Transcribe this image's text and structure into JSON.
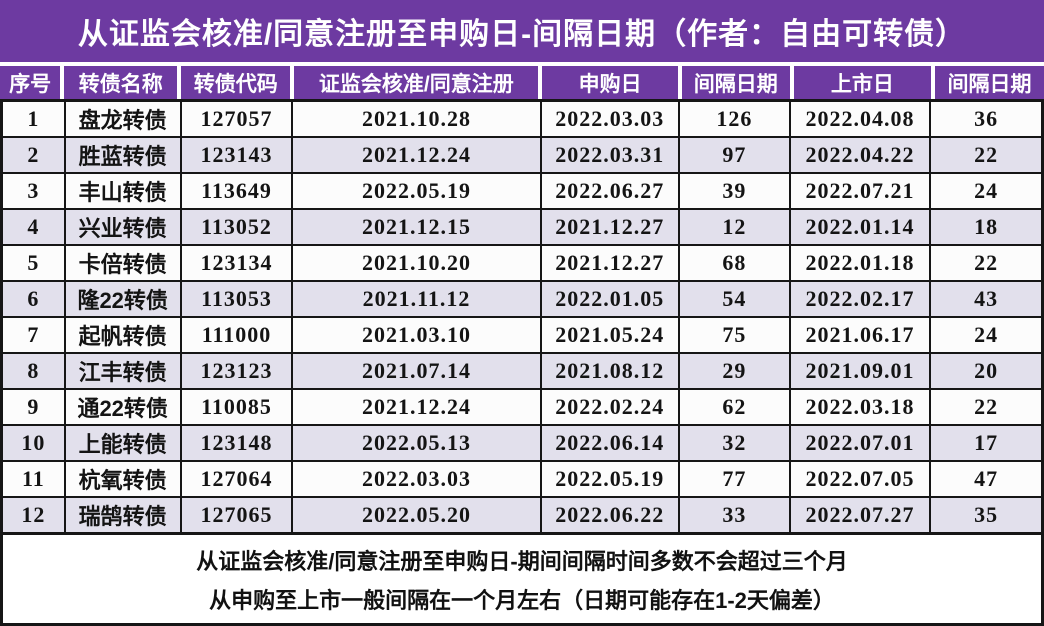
{
  "colors": {
    "accent_purple": "#6d3aa1",
    "row_alt_lavender": "#e2e0ec",
    "row_white": "#fcfcfc",
    "grid_black": "#161616",
    "header_text": "#ffffff"
  },
  "chart_data": {
    "type": "table",
    "title": "从证监会核准/同意注册至申购日-间隔日期（作者：自由可转债）",
    "columns": [
      "序号",
      "转债名称",
      "转债代码",
      "证监会核准/同意注册",
      "申购日",
      "间隔日期",
      "上市日",
      "间隔日期"
    ],
    "rows": [
      [
        "1",
        "盘龙转债",
        "127057",
        "2021.10.28",
        "2022.03.03",
        "126",
        "2022.04.08",
        "36"
      ],
      [
        "2",
        "胜蓝转债",
        "123143",
        "2021.12.24",
        "2022.03.31",
        "97",
        "2022.04.22",
        "22"
      ],
      [
        "3",
        "丰山转债",
        "113649",
        "2022.05.19",
        "2022.06.27",
        "39",
        "2022.07.21",
        "24"
      ],
      [
        "4",
        "兴业转债",
        "113052",
        "2021.12.15",
        "2021.12.27",
        "12",
        "2022.01.14",
        "18"
      ],
      [
        "5",
        "卡倍转债",
        "123134",
        "2021.10.20",
        "2021.12.27",
        "68",
        "2022.01.18",
        "22"
      ],
      [
        "6",
        "隆22转债",
        "113053",
        "2021.11.12",
        "2022.01.05",
        "54",
        "2022.02.17",
        "43"
      ],
      [
        "7",
        "起帆转债",
        "111000",
        "2021.03.10",
        "2021.05.24",
        "75",
        "2021.06.17",
        "24"
      ],
      [
        "8",
        "江丰转债",
        "123123",
        "2021.07.14",
        "2021.08.12",
        "29",
        "2021.09.01",
        "20"
      ],
      [
        "9",
        "通22转债",
        "110085",
        "2021.12.24",
        "2022.02.24",
        "62",
        "2022.03.18",
        "22"
      ],
      [
        "10",
        "上能转债",
        "123148",
        "2022.05.13",
        "2022.06.14",
        "32",
        "2022.07.01",
        "17"
      ],
      [
        "11",
        "杭氧转债",
        "127064",
        "2022.03.03",
        "2022.05.19",
        "77",
        "2022.07.05",
        "47"
      ],
      [
        "12",
        "瑞鹄转债",
        "127065",
        "2022.05.20",
        "2022.06.22",
        "33",
        "2022.07.27",
        "35"
      ]
    ],
    "footnotes": [
      "从证监会核准/同意注册至申购日-期间间隔时间多数不会超过三个月",
      "从申购至上市一般间隔在一个月左右（日期可能存在1-2天偏差）"
    ],
    "layout": {
      "alternating_rows": true,
      "header_position": "top"
    }
  }
}
